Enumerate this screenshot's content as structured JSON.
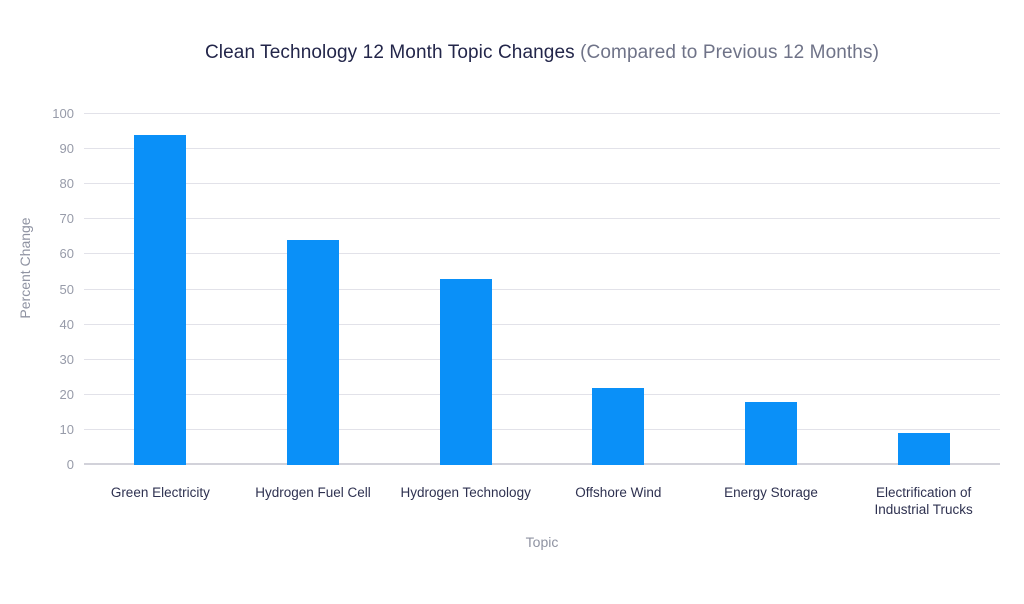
{
  "chart_data": {
    "type": "bar",
    "title": "Clean Technology 12 Month Topic Changes",
    "subtitle": "(Compared to Previous 12 Months)",
    "categories": [
      "Green Electricity",
      "Hydrogen Fuel Cell",
      "Hydrogen Technology",
      "Offshore Wind",
      "Energy Storage",
      "Electrification of Industrial Trucks"
    ],
    "values": [
      94,
      64,
      53,
      22,
      18,
      9
    ],
    "xlabel": "Topic",
    "ylabel": "Percent Change",
    "ylim": [
      0,
      100
    ],
    "ytick_step": 10,
    "grid": true,
    "legend": false,
    "bar_color": "#0a90f8"
  },
  "colors": {
    "background": "#ffffff",
    "bar": "#0a90f8",
    "title": "#23264a",
    "subtitle": "#6f7388",
    "tick_label": "#979ba9",
    "axis_title": "#8f93a2",
    "category_label": "#2e3150",
    "gridline": "#e2e2e9",
    "baseline": "#d2d2da"
  }
}
